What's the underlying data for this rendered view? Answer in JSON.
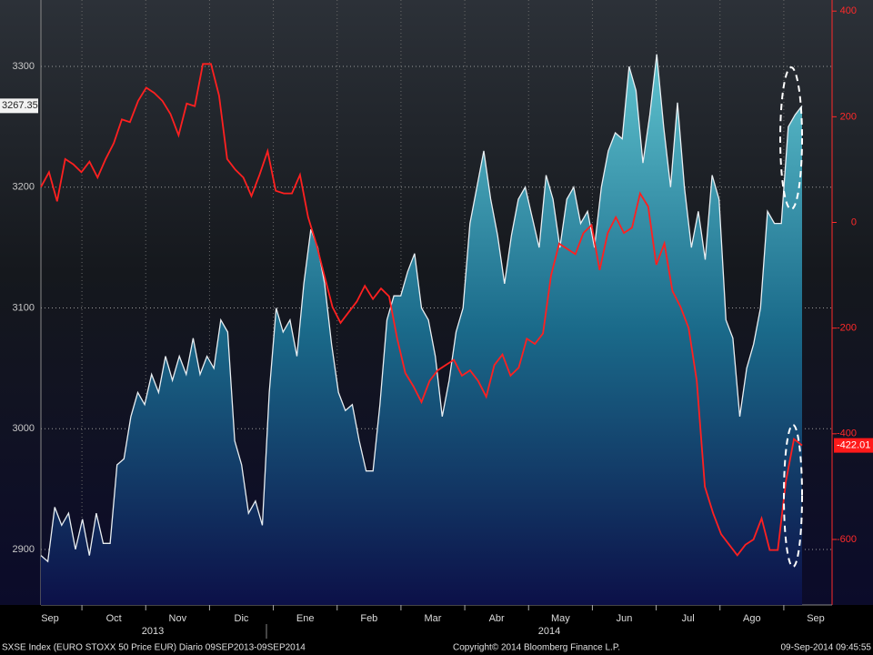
{
  "chart_data": {
    "type": "area-line",
    "x_labels": [
      "Sep",
      "Oct",
      "Nov",
      "Dic",
      "Ene",
      "Feb",
      "Mar",
      "Abr",
      "May",
      "Jun",
      "Jul",
      "Ago",
      "Sep"
    ],
    "year_labels": [
      "2013",
      "2014"
    ],
    "footer_left": "SXSE Index (EURO STOXX 50 Price EUR)  Diario 09SEP2013-09SEP2014",
    "footer_center": "Copyright© 2014 Bloomberg Finance L.P.",
    "footer_right": "09-Sep-2014 09:45:55",
    "ylim": [
      2854,
      3355
    ],
    "yticks": [
      2900,
      3000,
      3100,
      3200,
      3300
    ],
    "y2lim": [
      -724,
      421
    ],
    "y2ticks": [
      -600,
      -400,
      -200,
      0,
      200,
      400
    ],
    "grid": true,
    "series": [
      {
        "color": "#e8eef2",
        "axis": "y",
        "last_label": "3267.35",
        "values": [
          2895,
          2890,
          2935,
          2920,
          2930,
          2900,
          2925,
          2895,
          2930,
          2905,
          2905,
          2970,
          2975,
          3010,
          3030,
          3020,
          3045,
          3030,
          3060,
          3040,
          3060,
          3045,
          3075,
          3045,
          3060,
          3050,
          3090,
          3080,
          2990,
          2970,
          2930,
          2940,
          2920,
          3030,
          3100,
          3080,
          3090,
          3060,
          3120,
          3165,
          3150,
          3120,
          3070,
          3030,
          3015,
          3020,
          2990,
          2965,
          2965,
          3020,
          3090,
          3110,
          3110,
          3130,
          3145,
          3100,
          3090,
          3060,
          3010,
          3040,
          3080,
          3100,
          3170,
          3200,
          3230,
          3190,
          3160,
          3120,
          3160,
          3190,
          3200,
          3175,
          3150,
          3210,
          3190,
          3150,
          3190,
          3200,
          3170,
          3180,
          3150,
          3200,
          3230,
          3245,
          3240,
          3300,
          3280,
          3220,
          3260,
          3310,
          3250,
          3200,
          3270,
          3200,
          3150,
          3180,
          3140,
          3210,
          3190,
          3090,
          3075,
          3010,
          3050,
          3070,
          3100,
          3180,
          3170,
          3170,
          3250,
          3260,
          3267.35
        ]
      },
      {
        "color": "#ff2020",
        "axis": "y2",
        "last_label": "-422.01",
        "values": [
          67,
          95,
          40,
          120,
          110,
          95,
          115,
          85,
          120,
          150,
          195,
          190,
          230,
          255,
          245,
          230,
          205,
          165,
          225,
          220,
          300,
          300,
          240,
          120,
          100,
          85,
          50,
          90,
          135,
          60,
          55,
          55,
          90,
          10,
          -40,
          -100,
          -160,
          -190,
          -170,
          -150,
          -120,
          -145,
          -125,
          -140,
          -220,
          -285,
          -310,
          -340,
          -300,
          -280,
          -270,
          -260,
          -290,
          -280,
          -300,
          -330,
          -270,
          -250,
          -290,
          -275,
          -220,
          -230,
          -210,
          -100,
          -40,
          -50,
          -60,
          -20,
          -5,
          -90,
          -20,
          10,
          -20,
          -10,
          55,
          30,
          -80,
          -40,
          -130,
          -160,
          -200,
          -300,
          -500,
          -550,
          -590,
          -610,
          -630,
          -610,
          -600,
          -560,
          -620,
          -620,
          -490,
          -410,
          -422.01
        ]
      }
    ]
  }
}
